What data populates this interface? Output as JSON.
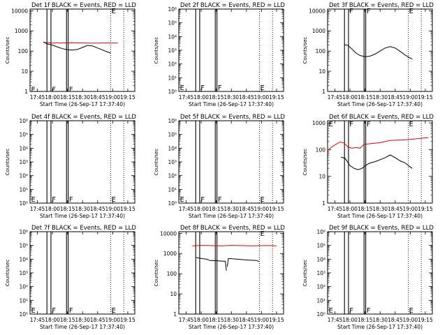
{
  "chart_data": [
    {
      "type": "line",
      "title": "Det 1f BLACK = Events, RED = LLD",
      "xlabel": "Start Time (26-Sep-17 17:37:40)",
      "ylabel": "Counts/sec",
      "x_ticks": [
        "17:45",
        "18:00",
        "18:15",
        "18:30",
        "18:45",
        "19:00",
        "19:15"
      ],
      "x_range": [
        "17:37:40",
        "19:22"
      ],
      "y_scale": "log",
      "y_ticks": [
        "1",
        "10",
        "100",
        "1000",
        "10000"
      ],
      "ylim": [
        1,
        12000
      ],
      "vlines_solid": [
        "17:54:30",
        "17:58:30",
        "18:14",
        "18:15:40"
      ],
      "vlines_dotted": [
        "18:58",
        "19:11"
      ],
      "markers": [
        {
          "label": "E",
          "time": "17:38",
          "log_y": 0.15
        },
        {
          "label": "F",
          "time": "17:58:45",
          "log_y": 0.15
        },
        {
          "label": "F",
          "time": "18:15:50",
          "log_y": 0.15
        },
        {
          "label": "E",
          "time": "18:58",
          "log_y": 4.05
        }
      ],
      "series": [
        {
          "name": "LLD",
          "color": "#e00000",
          "segments": [
            [
              [
                "17:51",
                "2.42"
              ],
              [
                "17:55",
                "2.41"
              ],
              [
                "18:00",
                "2.40"
              ],
              [
                "18:10",
                "2.40"
              ],
              [
                "18:20",
                "2.41"
              ],
              [
                "18:30",
                "2.40"
              ],
              [
                "18:40",
                "2.39"
              ],
              [
                "18:50",
                "2.40"
              ],
              [
                "19:00",
                "2.40"
              ],
              [
                "19:05",
                "2.40"
              ]
            ]
          ]
        },
        {
          "name": "Events",
          "color": "#000000",
          "segments": [
            [
              [
                "17:51",
                "2.45"
              ],
              [
                "17:55",
                "2.35"
              ],
              [
                "18:00",
                "2.30"
              ],
              [
                "18:05",
                "2.20"
              ],
              [
                "18:10",
                "2.12"
              ],
              [
                "18:15",
                "2.06"
              ],
              [
                "18:20",
                "2.05"
              ],
              [
                "18:25",
                "2.08"
              ],
              [
                "18:30",
                "2.18"
              ],
              [
                "18:35",
                "2.28"
              ],
              [
                "18:40",
                "2.25"
              ],
              [
                "18:45",
                "2.15"
              ],
              [
                "18:50",
                "2.05"
              ],
              [
                "18:55",
                "1.95"
              ],
              [
                "18:58",
                "1.90"
              ]
            ]
          ]
        }
      ]
    },
    {
      "type": "line",
      "title": "Det 2f BLACK = Events, RED = LLD",
      "xlabel": "Start Time (26-Sep-17 17:37:40)",
      "ylabel": "Counts/sec",
      "x_ticks": [
        "17:45",
        "18:00",
        "18:15",
        "18:30",
        "18:45",
        "19:00",
        "19:15"
      ],
      "x_range": [
        "17:37:40",
        "19:22"
      ],
      "y_scale": "log",
      "y_ticks": [
        "10⁰",
        "10¹",
        "10²",
        "10³",
        "10⁴",
        "10⁵",
        "10⁶"
      ],
      "ylim": [
        1,
        1000000
      ],
      "vlines_solid": [
        "17:54:30",
        "17:58:30",
        "18:14",
        "18:15:40"
      ],
      "vlines_dotted": [
        "18:58",
        "19:11"
      ],
      "markers": [
        {
          "label": "E",
          "time": "17:38",
          "log_y": 0.35
        },
        {
          "label": "F",
          "time": "17:58:45",
          "log_y": 0.35
        },
        {
          "label": "F",
          "time": "18:15:50",
          "log_y": 0.35
        },
        {
          "label": "E",
          "time": "18:58",
          "log_y": 0.35
        }
      ],
      "series": []
    },
    {
      "type": "line",
      "title": "Det 3f BLACK = Events, RED = LLD",
      "xlabel": "Start Time (26-Sep-17 17:37:40)",
      "ylabel": "Counts/sec",
      "x_ticks": [
        "17:45",
        "18:00",
        "18:15",
        "18:30",
        "18:45",
        "19:00",
        "19:15"
      ],
      "x_range": [
        "17:37:40",
        "19:22"
      ],
      "y_scale": "log",
      "y_ticks": [
        "1",
        "10",
        "100",
        "1000",
        "10000"
      ],
      "ylim": [
        1,
        12000
      ],
      "vlines_solid": [
        "17:54:30",
        "17:58:30",
        "18:14",
        "18:15:40"
      ],
      "vlines_dotted": [
        "18:58",
        "19:11"
      ],
      "markers": [
        {
          "label": "F",
          "time": "17:58:45",
          "log_y": 4.05
        },
        {
          "label": "F",
          "time": "18:15:50",
          "log_y": 4.05
        },
        {
          "label": "E",
          "time": "18:58",
          "log_y": 4.05
        }
      ],
      "series": [
        {
          "name": "Events",
          "color": "#000000",
          "segments": [
            [
              [
                "17:54:30",
                "2.32"
              ],
              [
                "17:58",
                "2.28"
              ],
              [
                "18:02",
                "2.10"
              ],
              [
                "18:06",
                "1.90"
              ],
              [
                "18:10",
                "1.78"
              ],
              [
                "18:15",
                "1.72"
              ],
              [
                "18:20",
                "1.75"
              ],
              [
                "18:25",
                "1.85"
              ],
              [
                "18:30",
                "2.00"
              ],
              [
                "18:35",
                "2.15"
              ],
              [
                "18:40",
                "2.22"
              ],
              [
                "18:45",
                "2.15"
              ],
              [
                "18:50",
                "1.98"
              ],
              [
                "18:55",
                "1.80"
              ],
              [
                "19:00",
                "1.65"
              ],
              [
                "19:02",
                "1.60"
              ]
            ]
          ]
        }
      ]
    },
    {
      "type": "line",
      "title": "Det 4f BLACK = Events, RED = LLD",
      "xlabel": "Start Time (26-Sep-17 17:37:40)",
      "ylabel": "Counts/sec",
      "x_ticks": [
        "17:45",
        "18:00",
        "18:15",
        "18:30",
        "18:45",
        "19:00",
        "19:15"
      ],
      "x_range": [
        "17:37:40",
        "19:22"
      ],
      "y_scale": "log",
      "y_ticks": [
        "10⁰",
        "10¹",
        "10²",
        "10³",
        "10⁴",
        "10⁵",
        "10⁶"
      ],
      "ylim": [
        1,
        1000000
      ],
      "vlines_solid": [
        "17:54:30",
        "17:58:30",
        "18:14",
        "18:15:40"
      ],
      "vlines_dotted": [
        "18:58",
        "19:11"
      ],
      "markers": [
        {
          "label": "E",
          "time": "17:38",
          "log_y": 0.35
        },
        {
          "label": "F",
          "time": "17:58:45",
          "log_y": 0.35
        },
        {
          "label": "F",
          "time": "18:15:50",
          "log_y": 0.35
        },
        {
          "label": "E",
          "time": "18:58",
          "log_y": 0.35
        }
      ],
      "series": []
    },
    {
      "type": "line",
      "title": "Det 5f BLACK = Events, RED = LLD",
      "xlabel": "Start Time (26-Sep-17 17:37:40)",
      "ylabel": "Counts/sec",
      "x_ticks": [
        "17:45",
        "18:00",
        "18:15",
        "18:30",
        "18:45",
        "19:00",
        "19:15"
      ],
      "x_range": [
        "17:37:40",
        "19:22"
      ],
      "y_scale": "log",
      "y_ticks": [
        "10⁰",
        "10¹",
        "10²",
        "10³",
        "10⁴",
        "10⁵",
        "10⁶"
      ],
      "ylim": [
        1,
        1000000
      ],
      "vlines_solid": [
        "17:54:30",
        "17:58:30",
        "18:14",
        "18:15:40"
      ],
      "vlines_dotted": [
        "18:58",
        "19:11"
      ],
      "markers": [
        {
          "label": "E",
          "time": "17:38",
          "log_y": 0.35
        },
        {
          "label": "F",
          "time": "17:58:45",
          "log_y": 0.35
        },
        {
          "label": "F",
          "time": "18:15:50",
          "log_y": 0.35
        },
        {
          "label": "E",
          "time": "18:58",
          "log_y": 0.35
        }
      ],
      "series": []
    },
    {
      "type": "line",
      "title": "Det 6f BLACK = Events, RED = LLD",
      "xlabel": "Start Time (26-Sep-17 17:37:40)",
      "ylabel": "Counts/sec",
      "x_ticks": [
        "17:45",
        "18:00",
        "18:15",
        "18:30",
        "18:45",
        "19:00",
        "19:15"
      ],
      "x_range": [
        "17:37:40",
        "19:22"
      ],
      "y_scale": "log",
      "y_ticks": [
        "1",
        "10",
        "100",
        "1000"
      ],
      "ylim": [
        1,
        1200
      ],
      "vlines_solid": [
        "17:54:30",
        "17:58:30",
        "18:14",
        "18:15:40"
      ],
      "vlines_dotted": [
        "18:58",
        "19:11"
      ],
      "markers": [
        {
          "label": "E",
          "time": "17:38",
          "log_y": 3.0
        },
        {
          "label": "F",
          "time": "17:58:45",
          "log_y": 3.0
        },
        {
          "label": "F",
          "time": "18:15:50",
          "log_y": 3.0
        },
        {
          "label": "E",
          "time": "18:58",
          "log_y": 3.0
        }
      ],
      "series": [
        {
          "name": "LLD",
          "color": "#e00000",
          "segments": [
            [
              [
                "17:37:40",
                "1.98"
              ],
              [
                "17:42",
                "2.10"
              ],
              [
                "17:46",
                "2.20"
              ],
              [
                "17:50",
                "2.28"
              ],
              [
                "17:54",
                "2.25"
              ],
              [
                "17:58",
                "2.10"
              ],
              [
                "18:02",
                "2.05"
              ],
              [
                "18:06",
                "2.08"
              ],
              [
                "18:10",
                "2.05"
              ],
              [
                "18:14",
                "2.20"
              ],
              [
                "18:20",
                "2.22"
              ],
              [
                "18:30",
                "2.26"
              ],
              [
                "18:40",
                "2.34"
              ],
              [
                "18:50",
                "2.36"
              ],
              [
                "19:00",
                "2.38"
              ],
              [
                "19:10",
                "2.42"
              ],
              [
                "19:18",
                "2.45"
              ]
            ]
          ]
        },
        {
          "name": "Events",
          "color": "#000000",
          "segments": [
            [
              [
                "17:51",
                "1.72"
              ],
              [
                "17:55",
                "1.68"
              ],
              [
                "18:00",
                "1.40"
              ],
              [
                "18:04",
                "1.30"
              ],
              [
                "18:08",
                "1.25"
              ],
              [
                "18:12",
                "1.30"
              ],
              [
                "18:16",
                "1.42"
              ],
              [
                "18:20",
                "1.50"
              ],
              [
                "18:25",
                "1.55"
              ],
              [
                "18:30",
                "1.62"
              ],
              [
                "18:35",
                "1.70"
              ],
              [
                "18:40",
                "1.80"
              ],
              [
                "18:45",
                "1.70"
              ],
              [
                "18:50",
                "1.58"
              ],
              [
                "18:55",
                "1.50"
              ],
              [
                "19:00",
                "1.35"
              ],
              [
                "19:02",
                "1.30"
              ]
            ]
          ]
        }
      ]
    },
    {
      "type": "line",
      "title": "Det 7f BLACK = Events, RED = LLD",
      "xlabel": "Start Time (26-Sep-17 17:37:40)",
      "ylabel": "Counts/sec",
      "x_ticks": [
        "17:45",
        "18:00",
        "18:15",
        "18:30",
        "18:45",
        "19:00",
        "19:15"
      ],
      "x_range": [
        "17:37:40",
        "19:22"
      ],
      "y_scale": "log",
      "y_ticks": [
        "10⁰",
        "10¹",
        "10²",
        "10³",
        "10⁴",
        "10⁵",
        "10⁶"
      ],
      "ylim": [
        1,
        1000000
      ],
      "vlines_solid": [
        "17:54:30",
        "17:58:30",
        "18:14",
        "18:15:40"
      ],
      "vlines_dotted": [
        "18:58",
        "19:11"
      ],
      "markers": [
        {
          "label": "E",
          "time": "17:38",
          "log_y": 0.35
        },
        {
          "label": "F",
          "time": "17:58:45",
          "log_y": 0.35
        },
        {
          "label": "F",
          "time": "18:15:50",
          "log_y": 0.35
        },
        {
          "label": "E",
          "time": "18:58",
          "log_y": 0.35
        }
      ],
      "series": []
    },
    {
      "type": "line",
      "title": "Det 8f BLACK = Events, RED = LLD",
      "xlabel": "Start Time (26-Sep-17 17:37:40)",
      "ylabel": "Counts/sec",
      "x_ticks": [
        "17:45",
        "18:00",
        "18:15",
        "18:30",
        "18:45",
        "19:00",
        "19:15"
      ],
      "x_range": [
        "17:37:40",
        "19:22"
      ],
      "y_scale": "log",
      "y_ticks": [
        "1",
        "10",
        "100",
        "1000",
        "10000"
      ],
      "ylim": [
        1,
        12000
      ],
      "vlines_solid": [
        "17:54:30",
        "17:58:30",
        "18:14",
        "18:15:40"
      ],
      "vlines_dotted": [
        "18:58",
        "19:11"
      ],
      "markers": [
        {
          "label": "E",
          "time": "18:58",
          "log_y": 4.05
        }
      ],
      "series": [
        {
          "name": "LLD",
          "color": "#e00000",
          "segments": [
            [
              [
                "17:51",
                "3.38"
              ],
              [
                "18:00",
                "3.40"
              ],
              [
                "18:10",
                "3.39"
              ],
              [
                "18:20",
                "3.38"
              ],
              [
                "18:30",
                "3.40"
              ],
              [
                "18:40",
                "3.39"
              ],
              [
                "18:50",
                "3.38"
              ],
              [
                "19:00",
                "3.39"
              ],
              [
                "19:10",
                "3.39"
              ],
              [
                "19:15",
                "3.38"
              ]
            ]
          ]
        },
        {
          "name": "Events",
          "color": "#000000",
          "segments": [
            [
              [
                "17:55",
                "2.80"
              ],
              [
                "18:00",
                "2.75"
              ],
              [
                "18:05",
                "2.72"
              ],
              [
                "18:08",
                "2.68"
              ]
            ],
            [
              [
                "18:08",
                "2.65"
              ],
              [
                "18:15",
                "2.64"
              ],
              [
                "18:22",
                "2.62"
              ],
              [
                "18:24",
                "2.62"
              ],
              [
                "18:25",
                "2.15"
              ]
            ],
            [
              [
                "18:26",
                "2.35"
              ],
              [
                "18:27",
                "2.75"
              ],
              [
                "18:35",
                "2.72"
              ],
              [
                "18:45",
                "2.68"
              ],
              [
                "18:55",
                "2.65"
              ],
              [
                "18:58",
                "2.60"
              ]
            ]
          ]
        }
      ]
    },
    {
      "type": "line",
      "title": "Det 9f BLACK = Events, RED = LLD",
      "xlabel": "Start Time (26-Sep-17 17:37:40)",
      "ylabel": "Counts/sec",
      "x_ticks": [
        "17:45",
        "18:00",
        "18:15",
        "18:30",
        "18:45",
        "19:00",
        "19:15"
      ],
      "x_range": [
        "17:37:40",
        "19:22"
      ],
      "y_scale": "log",
      "y_ticks": [
        "10⁰",
        "10¹",
        "10²",
        "10³",
        "10⁴",
        "10⁵",
        "10⁶"
      ],
      "ylim": [
        1,
        1000000
      ],
      "vlines_solid": [
        "17:54:30",
        "17:58:30",
        "18:14",
        "18:15:40"
      ],
      "vlines_dotted": [
        "18:58",
        "19:11"
      ],
      "markers": [
        {
          "label": "E",
          "time": "17:38",
          "log_y": 0.35
        },
        {
          "label": "F",
          "time": "17:58:45",
          "log_y": 0.35
        },
        {
          "label": "F",
          "time": "18:15:50",
          "log_y": 0.35
        },
        {
          "label": "E",
          "time": "18:58",
          "log_y": 0.35
        }
      ],
      "series": []
    }
  ]
}
